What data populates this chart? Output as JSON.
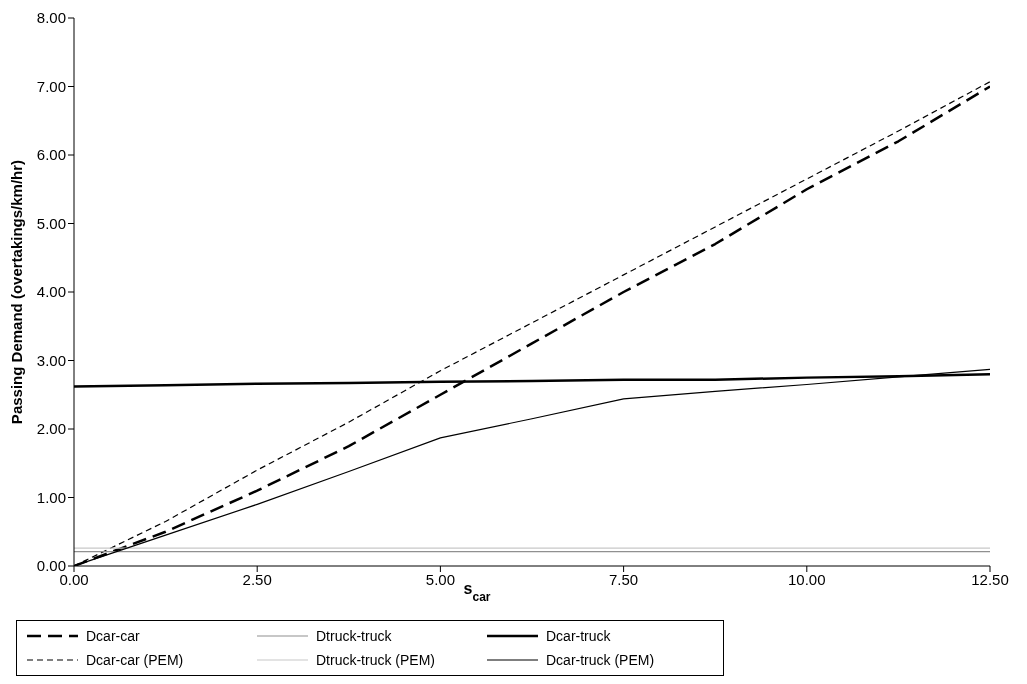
{
  "chart_data": {
    "type": "line",
    "xlabel": "s$_{car}$",
    "ylabel": "Passing Demand (overtakings/km/hr)",
    "xlim": [
      0,
      12.5
    ],
    "ylim": [
      0,
      8
    ],
    "xticks": [
      {
        "value": 0,
        "label": "0.00"
      },
      {
        "value": 2.5,
        "label": "2.50"
      },
      {
        "value": 5,
        "label": "5.00"
      },
      {
        "value": 7.5,
        "label": "7.50"
      },
      {
        "value": 10,
        "label": "10.00"
      },
      {
        "value": 12.5,
        "label": "12.50"
      }
    ],
    "yticks": [
      {
        "value": 0,
        "label": "0.00"
      },
      {
        "value": 1,
        "label": "1.00"
      },
      {
        "value": 2,
        "label": "2.00"
      },
      {
        "value": 3,
        "label": "3.00"
      },
      {
        "value": 4,
        "label": "4.00"
      },
      {
        "value": 5,
        "label": "5.00"
      },
      {
        "value": 6,
        "label": "6.00"
      },
      {
        "value": 7,
        "label": "7.00"
      },
      {
        "value": 8,
        "label": "8.00"
      }
    ],
    "x": [
      0,
      1.25,
      2.5,
      3.75,
      5,
      6.25,
      7.5,
      8.75,
      10,
      11.25,
      12.5
    ],
    "grid": false,
    "legend": "bottom",
    "marker": "none",
    "series": [
      {
        "name": "Dcar-car",
        "color": "#000000",
        "line_style": "dashed",
        "values": [
          0,
          0.5,
          1.1,
          1.75,
          2.5,
          3.25,
          4.0,
          4.7,
          5.5,
          6.2,
          7.0
        ]
      },
      {
        "name": "Dcar-car (PEM)",
        "color": "#000000",
        "line_style": "dashed",
        "values": [
          0,
          0.65,
          1.4,
          2.1,
          2.85,
          3.55,
          4.25,
          4.95,
          5.65,
          6.35,
          7.07
        ]
      },
      {
        "name": "Dtruck-truck",
        "color": "#909090",
        "line_style": "solid",
        "values": [
          0.21,
          0.21,
          0.21,
          0.21,
          0.21,
          0.21,
          0.21,
          0.21,
          0.21,
          0.21,
          0.21
        ]
      },
      {
        "name": "Dtruck-truck (PEM)",
        "color": "#c8c8c8",
        "line_style": "solid",
        "values": [
          0.26,
          0.26,
          0.26,
          0.26,
          0.26,
          0.26,
          0.26,
          0.26,
          0.26,
          0.26,
          0.26
        ]
      },
      {
        "name": "Dcar-truck",
        "color": "#000000",
        "line_style": "solid",
        "values": [
          2.62,
          2.64,
          2.66,
          2.67,
          2.69,
          2.7,
          2.72,
          2.72,
          2.75,
          2.77,
          2.8
        ]
      },
      {
        "name": "Dcar-truck (PEM)",
        "color": "#000000",
        "line_style": "solid",
        "values": [
          0,
          0.45,
          0.9,
          1.38,
          1.87,
          2.15,
          2.44,
          2.55,
          2.65,
          2.76,
          2.87
        ]
      }
    ]
  }
}
